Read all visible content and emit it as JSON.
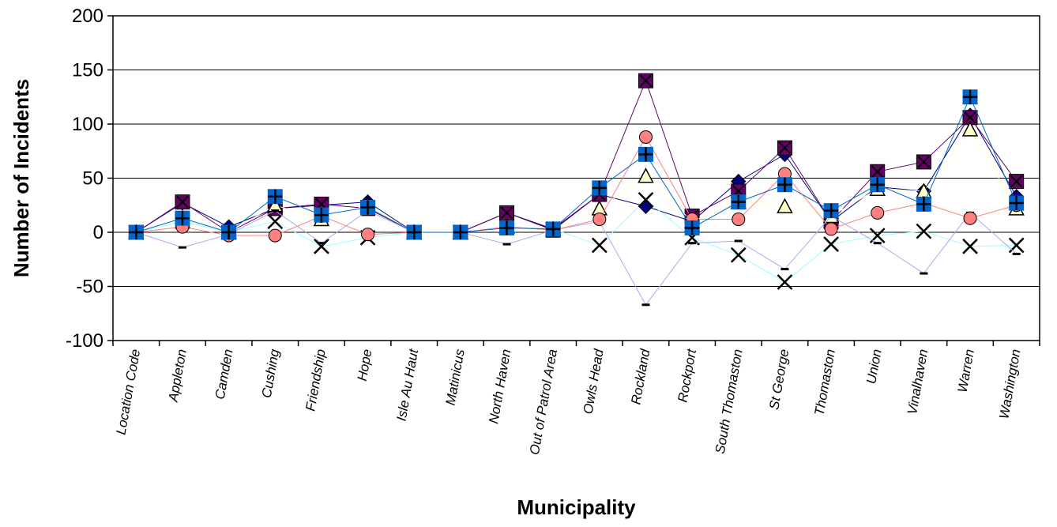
{
  "chart_data": {
    "type": "line",
    "title": "",
    "xlabel": "Municipality",
    "ylabel": "Number of Incidents",
    "ylim": [
      -100,
      200
    ],
    "yticks": [
      -100,
      -50,
      0,
      50,
      100,
      150,
      200
    ],
    "grid": "horizontal",
    "legend": "none",
    "categories": [
      "Location Code",
      "Appleton",
      "Camden",
      "Cushing",
      "Friendship",
      "Hope",
      "Isle Au Haut",
      "Matinicus",
      "North Haven",
      "Out of Patrol Area",
      "Owls Head",
      "Rockland",
      "Rockport",
      "South Thomaston",
      "St George",
      "Thomaston",
      "Union",
      "Vinalhaven",
      "Warren",
      "Washington"
    ],
    "series": [
      {
        "marker": "diamond",
        "color": "#000080",
        "values": [
          0,
          27,
          5,
          22,
          25,
          28,
          0,
          0,
          18,
          3,
          35,
          24,
          10,
          47,
          72,
          10,
          42,
          38,
          108,
          33
        ]
      },
      {
        "marker": "square-x",
        "color": "#660066",
        "values": [
          0,
          28,
          0,
          22,
          26,
          22,
          0,
          0,
          18,
          2,
          35,
          140,
          15,
          38,
          78,
          10,
          56,
          65,
          106,
          47
        ]
      },
      {
        "marker": "triangle",
        "color": "#ffffcc",
        "values": [
          0,
          10,
          0,
          25,
          12,
          25,
          0,
          0,
          5,
          3,
          22,
          52,
          10,
          28,
          24,
          15,
          40,
          38,
          95,
          22
        ]
      },
      {
        "marker": "x",
        "color": "#99ffff",
        "values": [
          0,
          10,
          0,
          10,
          -13,
          -5,
          0,
          0,
          5,
          3,
          -12,
          30,
          -5,
          -21,
          -46,
          -11,
          -3,
          1,
          -13,
          -12
        ]
      },
      {
        "marker": "dash",
        "color": "#aaaaee",
        "values": [
          0,
          -14,
          -2,
          20,
          -10,
          20,
          0,
          0,
          -11,
          2,
          10,
          -67,
          -10,
          -8,
          -34,
          15,
          -10,
          -38,
          18,
          -20
        ]
      },
      {
        "marker": "circle",
        "color": "#ff8080",
        "values": [
          0,
          5,
          -3,
          -3,
          15,
          -2,
          0,
          0,
          5,
          2,
          12,
          88,
          12,
          12,
          54,
          3,
          18,
          27,
          13,
          25
        ]
      },
      {
        "marker": "plus",
        "color": "#0066cc",
        "values": [
          0,
          13,
          0,
          33,
          16,
          23,
          0,
          0,
          4,
          3,
          41,
          72,
          4,
          28,
          44,
          20,
          44,
          26,
          125,
          27
        ]
      }
    ]
  }
}
